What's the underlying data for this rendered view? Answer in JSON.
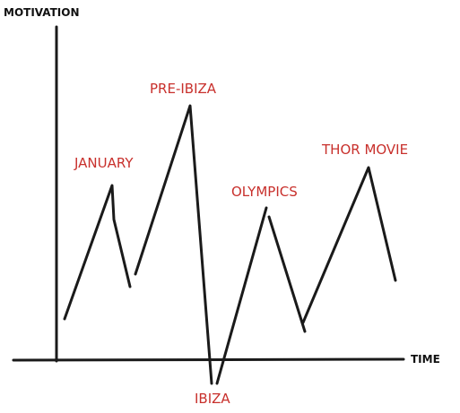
{
  "axis_labels": {
    "y": "MOTIVATION",
    "x": "TIME"
  },
  "annotations": [
    "JANUARY",
    "PRE-IBIZA",
    "IBIZA",
    "OLYMPICS",
    "THOR MOVIE"
  ]
}
